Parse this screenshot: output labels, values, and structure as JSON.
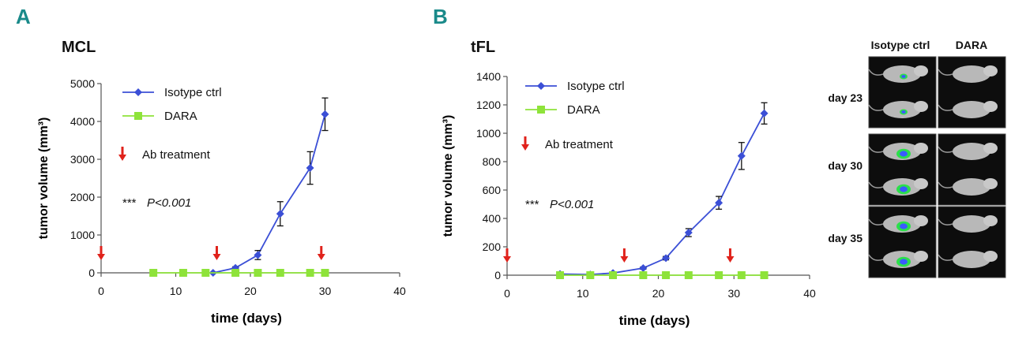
{
  "colors": {
    "isotype": "#3b4fd6",
    "dara": "#8ee33a",
    "arrow": "#e0221b",
    "panel_letter": "#1a8a8a"
  },
  "chart_data": [
    {
      "panel": "A",
      "title": "MCL",
      "type": "line",
      "xlabel": "time (days)",
      "ylabel": "tumor volume (mm³)",
      "xlim": [
        0,
        40
      ],
      "ylim": [
        0,
        5000
      ],
      "xticks": [
        0,
        10,
        20,
        30,
        40
      ],
      "yticks": [
        0,
        1000,
        2000,
        3000,
        4000,
        5000
      ],
      "series": [
        {
          "name": "Isotype ctrl",
          "x": [
            15,
            18,
            21,
            24,
            28,
            30
          ],
          "y": [
            0,
            130,
            470,
            1560,
            2770,
            4190
          ],
          "err": [
            0,
            30,
            120,
            320,
            430,
            430
          ]
        },
        {
          "name": "DARA",
          "x": [
            7,
            11,
            14,
            18,
            21,
            24,
            28,
            30
          ],
          "y": [
            0,
            0,
            0,
            0,
            0,
            0,
            0,
            0
          ],
          "err": [
            0,
            0,
            0,
            0,
            0,
            0,
            0,
            0
          ]
        }
      ],
      "treatment_days": [
        0,
        15.5,
        29.5
      ],
      "treatment_label": "Ab treatment",
      "stat_stars": "***",
      "stat_p": "P<0.001"
    },
    {
      "panel": "B",
      "title": "tFL",
      "type": "line",
      "xlabel": "time (days)",
      "ylabel": "tumor volume (mm³)",
      "xlim": [
        0,
        40
      ],
      "ylim": [
        0,
        1400
      ],
      "xticks": [
        0,
        10,
        20,
        30,
        40
      ],
      "yticks": [
        0,
        200,
        400,
        600,
        800,
        1000,
        1200,
        1400
      ],
      "series": [
        {
          "name": "Isotype ctrl",
          "x": [
            7,
            11,
            14,
            18,
            21,
            24,
            28,
            31,
            34
          ],
          "y": [
            8,
            5,
            15,
            50,
            120,
            300,
            510,
            840,
            1140
          ],
          "err": [
            0,
            0,
            0,
            8,
            12,
            28,
            45,
            95,
            75
          ]
        },
        {
          "name": "DARA",
          "x": [
            7,
            11,
            14,
            18,
            21,
            24,
            28,
            31,
            34
          ],
          "y": [
            0,
            0,
            0,
            0,
            0,
            0,
            0,
            0,
            0
          ],
          "err": [
            0,
            0,
            0,
            0,
            0,
            0,
            0,
            0,
            0
          ]
        }
      ],
      "treatment_days": [
        0,
        15.5,
        29.5
      ],
      "treatment_label": "Ab treatment",
      "stat_stars": "***",
      "stat_p": "P<0.001"
    }
  ],
  "imaging": {
    "columns": [
      "Isotype ctrl",
      "DARA"
    ],
    "rows": [
      "day 23",
      "day 30",
      "day 35"
    ]
  }
}
